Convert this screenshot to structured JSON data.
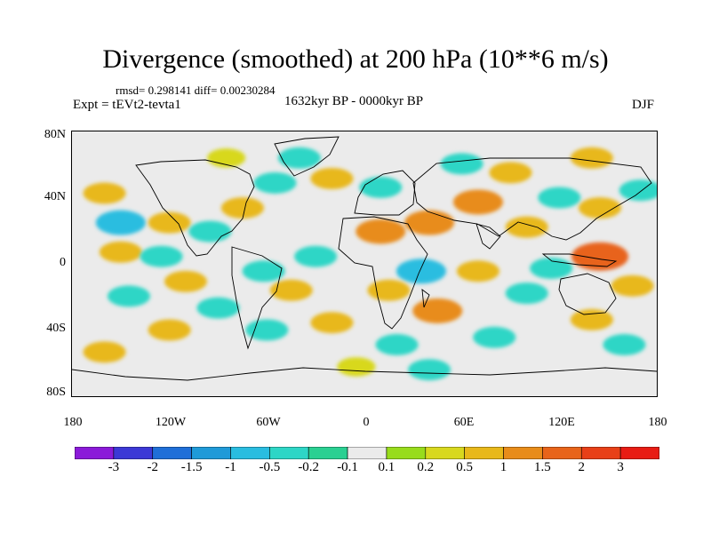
{
  "title": "Divergence (smoothed) at 200 hPa (10**6 m/s)",
  "stats": "rmsd= 0.298141 diff= 0.00230284",
  "experiment": "Expt = tEVt2-tevta1",
  "period": "1632kyr BP - 0000kyr BP",
  "season": "DJF",
  "chart_data": {
    "type": "heatmap",
    "projection": "cylindrical equidistant",
    "x_ticks": [
      "180",
      "120W",
      "60W",
      "0",
      "60E",
      "120E",
      "180"
    ],
    "y_ticks": [
      "80N",
      "40N",
      "0",
      "40S",
      "80S"
    ],
    "xlim": [
      -180,
      180
    ],
    "ylim": [
      -90,
      90
    ],
    "colorbar_labels": [
      "-3",
      "-2",
      "-1.5",
      "-1",
      "-0.5",
      "-0.2",
      "-0.1",
      "0.1",
      "0.2",
      "0.5",
      "1",
      "1.5",
      "2",
      "3"
    ],
    "colorbar_colors": [
      "#8b1ad9",
      "#3c38d6",
      "#1f6fd8",
      "#1f9ad8",
      "#29bde0",
      "#2dd6c6",
      "#2ad092",
      "#ebebeb",
      "#98dc1c",
      "#d8d81e",
      "#e8b81a",
      "#e88c1a",
      "#e8641a",
      "#e84018",
      "#e81c14"
    ],
    "anomalies": [
      {
        "lon": -150,
        "lat": 28,
        "value": -1.0
      },
      {
        "lon": -160,
        "lat": 48,
        "value": 0.5
      },
      {
        "lon": -120,
        "lat": 28,
        "value": 0.5
      },
      {
        "lon": -150,
        "lat": 8,
        "value": 0.5
      },
      {
        "lon": -125,
        "lat": 5,
        "value": -0.5
      },
      {
        "lon": -95,
        "lat": 22,
        "value": -0.5
      },
      {
        "lon": -145,
        "lat": -22,
        "value": -0.5
      },
      {
        "lon": -110,
        "lat": -12,
        "value": 0.5
      },
      {
        "lon": -75,
        "lat": 38,
        "value": 0.5
      },
      {
        "lon": -55,
        "lat": 55,
        "value": -0.5
      },
      {
        "lon": -85,
        "lat": 72,
        "value": 0.2
      },
      {
        "lon": -40,
        "lat": 72,
        "value": -0.5
      },
      {
        "lon": -20,
        "lat": 58,
        "value": 0.5
      },
      {
        "lon": 10,
        "lat": 52,
        "value": -0.5
      },
      {
        "lon": 10,
        "lat": 22,
        "value": 1.0
      },
      {
        "lon": 40,
        "lat": 28,
        "value": 1.0
      },
      {
        "lon": 70,
        "lat": 42,
        "value": 1.0
      },
      {
        "lon": 90,
        "lat": 62,
        "value": 0.5
      },
      {
        "lon": 60,
        "lat": 68,
        "value": -0.5
      },
      {
        "lon": 120,
        "lat": 45,
        "value": -0.5
      },
      {
        "lon": 145,
        "lat": 38,
        "value": 0.5
      },
      {
        "lon": 170,
        "lat": 50,
        "value": -0.5
      },
      {
        "lon": 100,
        "lat": 25,
        "value": 0.5
      },
      {
        "lon": 145,
        "lat": 5,
        "value": 1.5
      },
      {
        "lon": 115,
        "lat": -3,
        "value": -0.5
      },
      {
        "lon": 165,
        "lat": -15,
        "value": 0.5
      },
      {
        "lon": 140,
        "lat": -38,
        "value": 0.5
      },
      {
        "lon": 100,
        "lat": -20,
        "value": -0.5
      },
      {
        "lon": 70,
        "lat": -5,
        "value": 0.5
      },
      {
        "lon": 35,
        "lat": -5,
        "value": -1.0
      },
      {
        "lon": 45,
        "lat": -32,
        "value": 1.0
      },
      {
        "lon": 15,
        "lat": -18,
        "value": 0.5
      },
      {
        "lon": -30,
        "lat": 5,
        "value": -0.5
      },
      {
        "lon": -45,
        "lat": -18,
        "value": 0.5
      },
      {
        "lon": -62,
        "lat": -5,
        "value": -0.5
      },
      {
        "lon": -90,
        "lat": -30,
        "value": -0.5
      },
      {
        "lon": -60,
        "lat": -45,
        "value": -0.5
      },
      {
        "lon": -20,
        "lat": -40,
        "value": 0.5
      },
      {
        "lon": 20,
        "lat": -55,
        "value": -0.5
      },
      {
        "lon": 80,
        "lat": -50,
        "value": -0.5
      },
      {
        "lon": -120,
        "lat": -45,
        "value": 0.5
      },
      {
        "lon": 160,
        "lat": -55,
        "value": -0.5
      },
      {
        "lon": -5,
        "lat": -70,
        "value": 0.2
      },
      {
        "lon": 40,
        "lat": -72,
        "value": -0.5
      },
      {
        "lon": -160,
        "lat": -60,
        "value": 0.5
      },
      {
        "lon": 140,
        "lat": 72,
        "value": 0.5
      }
    ]
  }
}
